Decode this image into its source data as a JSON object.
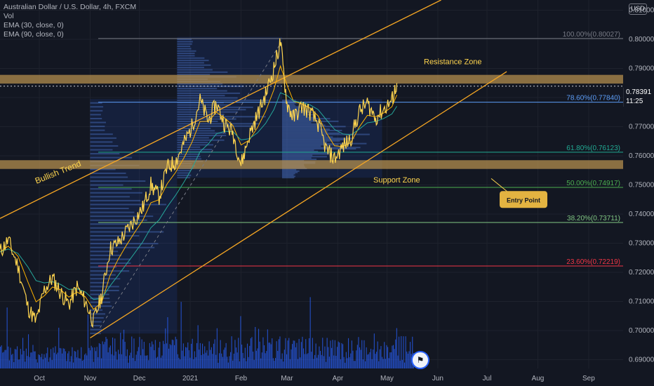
{
  "chart_data": {
    "type": "line",
    "symbol_title": "Australian Dollar / U.S. Dollar, 4h, FXCM",
    "indicators": [
      "Vol",
      "EMA (30, close, 0)",
      "EMA (90, close, 0)"
    ],
    "currency": "USD",
    "ylim": [
      0.687,
      0.8135
    ],
    "y_ticks": [
      0.69,
      0.7,
      0.71,
      0.72,
      0.73,
      0.74,
      0.75,
      0.76,
      0.77,
      0.78,
      0.79,
      0.8,
      0.81
    ],
    "y_tick_labels": [
      "0.69000",
      "0.70000",
      "0.71000",
      "0.72000",
      "0.73000",
      "0.74000",
      "0.75000",
      "0.76000",
      "0.77000",
      "0.78000",
      "0.79000",
      "0.80000",
      "0.81000"
    ],
    "x_tick_labels": [
      "Oct",
      "Nov",
      "Dec",
      "2021",
      "Feb",
      "Mar",
      "Apr",
      "May",
      "Jun",
      "Jul",
      "Aug",
      "Sep"
    ],
    "x_tick_dates": [
      "2020-10-01",
      "2020-11-01",
      "2020-12-01",
      "2021-01-01",
      "2021-02-01",
      "2021-03-01",
      "2021-04-01",
      "2021-05-01",
      "2021-06-01",
      "2021-07-01",
      "2021-08-01",
      "2021-09-01"
    ],
    "xlim": [
      "2020-09-07",
      "2021-09-22"
    ],
    "current_price": "0.78391",
    "countdown": "11:25",
    "price_path": {
      "dates": [
        "2020-09-07",
        "2020-09-12",
        "2020-09-18",
        "2020-09-24",
        "2020-09-29",
        "2020-10-04",
        "2020-10-09",
        "2020-10-14",
        "2020-10-19",
        "2020-10-24",
        "2020-10-29",
        "2020-11-03",
        "2020-11-08",
        "2020-11-13",
        "2020-11-18",
        "2020-11-23",
        "2020-11-28",
        "2020-12-03",
        "2020-12-08",
        "2020-12-13",
        "2020-12-18",
        "2020-12-23",
        "2020-12-28",
        "2021-01-02",
        "2021-01-07",
        "2021-01-12",
        "2021-01-17",
        "2021-01-22",
        "2021-01-27",
        "2021-02-01",
        "2021-02-06",
        "2021-02-11",
        "2021-02-16",
        "2021-02-21",
        "2021-02-25",
        "2021-03-01",
        "2021-03-05",
        "2021-03-10",
        "2021-03-15",
        "2021-03-20",
        "2021-03-25",
        "2021-03-30",
        "2021-04-04",
        "2021-04-09",
        "2021-04-14",
        "2021-04-19",
        "2021-04-24",
        "2021-04-29",
        "2021-05-04",
        "2021-05-07"
      ],
      "values": [
        0.727,
        0.731,
        0.722,
        0.708,
        0.703,
        0.714,
        0.718,
        0.713,
        0.709,
        0.715,
        0.71,
        0.703,
        0.712,
        0.728,
        0.73,
        0.734,
        0.738,
        0.742,
        0.75,
        0.746,
        0.756,
        0.758,
        0.764,
        0.77,
        0.779,
        0.772,
        0.778,
        0.771,
        0.768,
        0.757,
        0.767,
        0.774,
        0.781,
        0.79,
        0.799,
        0.778,
        0.773,
        0.777,
        0.775,
        0.771,
        0.762,
        0.759,
        0.763,
        0.766,
        0.775,
        0.778,
        0.773,
        0.776,
        0.779,
        0.785
      ]
    },
    "fibonacci_levels": [
      {
        "label": "100.00%(0.80027)",
        "value": 0.80027,
        "color": "#787b86"
      },
      {
        "label": "78.60%(0.77840)",
        "value": 0.7784,
        "color": "#5b9cf6"
      },
      {
        "label": "61.80%(0.76123)",
        "value": 0.76123,
        "color": "#22ab94"
      },
      {
        "label": "50.00%(0.74917)",
        "value": 0.74917,
        "color": "#4caf50"
      },
      {
        "label": "38.20%(0.73711)",
        "value": 0.73711,
        "color": "#81c784"
      },
      {
        "label": "23.60%(0.72219)",
        "value": 0.72219,
        "color": "#f23645"
      }
    ],
    "zones": [
      {
        "label": "Resistance Zone",
        "from": 0.7848,
        "to": 0.7878,
        "color": "#b8914f"
      },
      {
        "label": "Support Zone",
        "from": 0.7555,
        "to": 0.7585,
        "color": "#b8914f"
      }
    ],
    "annotations": [
      "Bullish Trend",
      "Entry Point"
    ],
    "colors": {
      "price": "#ffd54f",
      "ema30": "#ffb300",
      "ema90": "#26a69a",
      "channel": "#f5a623",
      "volume": "#2962ff",
      "background": "#131722",
      "grid": "#1e222d"
    }
  }
}
